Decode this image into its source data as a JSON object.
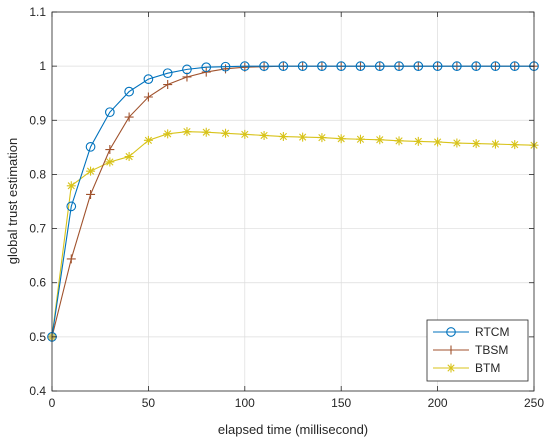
{
  "chart_data": {
    "type": "line",
    "xlabel": "elapsed time (millisecond)",
    "ylabel": "global trust estimation",
    "xlim": [
      0,
      250
    ],
    "ylim": [
      0.4,
      1.1
    ],
    "xticks": [
      0,
      50,
      100,
      150,
      200,
      250
    ],
    "yticks": [
      0.4,
      0.5,
      0.6,
      0.7,
      0.8,
      0.9,
      1.0,
      1.1
    ],
    "xtick_labels": [
      "0",
      "50",
      "100",
      "150",
      "200",
      "250"
    ],
    "ytick_labels": [
      "0.4",
      "0.5",
      "0.6",
      "0.7",
      "0.8",
      "0.9",
      "1",
      "1.1"
    ],
    "grid": true,
    "legend_position": "bottom-right",
    "x": [
      0,
      10,
      20,
      30,
      40,
      50,
      60,
      70,
      80,
      90,
      100,
      110,
      120,
      130,
      140,
      150,
      160,
      170,
      180,
      190,
      200,
      210,
      220,
      230,
      240,
      250
    ],
    "series": [
      {
        "name": "RTCM",
        "color": "#0072BD",
        "marker": "circle",
        "values": [
          0.5,
          0.741,
          0.851,
          0.915,
          0.953,
          0.976,
          0.987,
          0.994,
          0.998,
          0.999,
          1.0,
          1.0,
          1.0,
          1.0,
          1.0,
          1.0,
          1.0,
          1.0,
          1.0,
          1.0,
          1.0,
          1.0,
          1.0,
          1.0,
          1.0,
          1.0
        ]
      },
      {
        "name": "TBSM",
        "color": "#A0522D",
        "marker": "plus",
        "values": [
          0.5,
          0.644,
          0.763,
          0.846,
          0.906,
          0.943,
          0.966,
          0.98,
          0.989,
          0.995,
          0.998,
          0.999,
          1.0,
          1.0,
          1.0,
          1.0,
          1.0,
          1.0,
          1.0,
          1.0,
          1.0,
          1.0,
          1.0,
          1.0,
          1.0,
          1.0
        ]
      },
      {
        "name": "BTM",
        "color": "#D8C31A",
        "marker": "asterisk",
        "values": [
          0.5,
          0.779,
          0.806,
          0.823,
          0.833,
          0.863,
          0.875,
          0.879,
          0.878,
          0.876,
          0.874,
          0.872,
          0.87,
          0.869,
          0.868,
          0.866,
          0.865,
          0.864,
          0.862,
          0.861,
          0.86,
          0.858,
          0.857,
          0.856,
          0.855,
          0.854
        ]
      }
    ]
  }
}
